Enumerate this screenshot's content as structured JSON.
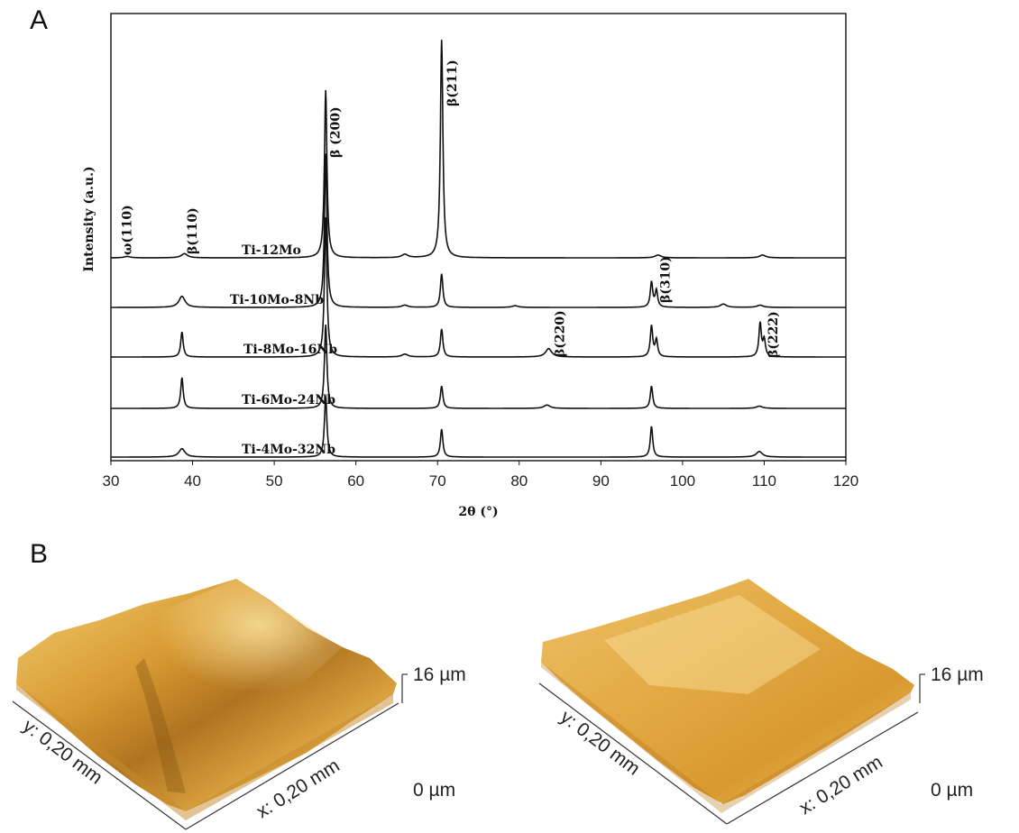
{
  "panels": {
    "a_label": "A",
    "b_label": "B"
  },
  "chart_data": {
    "type": "line",
    "title": "",
    "xlabel": "2θ (°)",
    "ylabel": "Intensity (a.u.)",
    "xlim": [
      30,
      120
    ],
    "xticks": [
      30,
      40,
      50,
      60,
      70,
      80,
      90,
      100,
      110,
      120
    ],
    "grid": false,
    "legend": "none",
    "series": [
      {
        "name": "Ti-12Mo",
        "peaks": [
          [
            32,
            0.5
          ],
          [
            39,
            1.5
          ],
          [
            56.3,
            60
          ],
          [
            66,
            1.2
          ],
          [
            70.5,
            78
          ],
          [
            97,
            1
          ],
          [
            109.8,
            1
          ]
        ]
      },
      {
        "name": "Ti-10Mo-8Nb",
        "peaks": [
          [
            38.7,
            4
          ],
          [
            56.3,
            55
          ],
          [
            66,
            0.8
          ],
          [
            70.5,
            12
          ],
          [
            79.5,
            0.6
          ],
          [
            96.2,
            9
          ],
          [
            96.8,
            6
          ],
          [
            105,
            1.2
          ],
          [
            109.5,
            0.8
          ]
        ]
      },
      {
        "name": "Ti-8Mo-16Nb",
        "peaks": [
          [
            38.7,
            9
          ],
          [
            56.3,
            50
          ],
          [
            66,
            1
          ],
          [
            70.5,
            10
          ],
          [
            83.6,
            3
          ],
          [
            96.2,
            11
          ],
          [
            96.8,
            6
          ],
          [
            109.5,
            12
          ],
          [
            110,
            6
          ]
        ]
      },
      {
        "name": "Ti-6Mo-24Nb",
        "peaks": [
          [
            38.7,
            11
          ],
          [
            56.3,
            30
          ],
          [
            70.5,
            8
          ],
          [
            83.4,
            1.2
          ],
          [
            96.2,
            8
          ],
          [
            109.4,
            0.8
          ]
        ]
      },
      {
        "name": "Ti-4Mo-32Nb",
        "peaks": [
          [
            38.7,
            3
          ],
          [
            56.3,
            22
          ],
          [
            70.5,
            10
          ],
          [
            96.2,
            11
          ],
          [
            109.4,
            2
          ]
        ]
      }
    ],
    "annotations": [
      {
        "text": "ω(110)",
        "x": 32.5
      },
      {
        "text": "β(110)",
        "x": 40.5
      },
      {
        "text": "β (200)",
        "x": 58
      },
      {
        "text": "β(211)",
        "x": 72.3
      },
      {
        "text": "β(220)",
        "x": 85.5
      },
      {
        "text": "β(310)",
        "x": 98.4
      },
      {
        "text": "β(222)",
        "x": 111.6
      }
    ]
  },
  "afm": {
    "left": {
      "y_axis": "y: 0,20 mm",
      "x_axis": "x: 0,20 mm",
      "z_top": "16 µm",
      "z_bottom": "0 µm"
    },
    "right": {
      "y_axis": "y: 0,20 mm",
      "x_axis": "x: 0,20 mm",
      "z_top": "16 µm",
      "z_bottom": "0 µm"
    },
    "colors": {
      "light": "#f6d88a",
      "mid": "#e0a43a",
      "dark": "#9b6418"
    }
  }
}
